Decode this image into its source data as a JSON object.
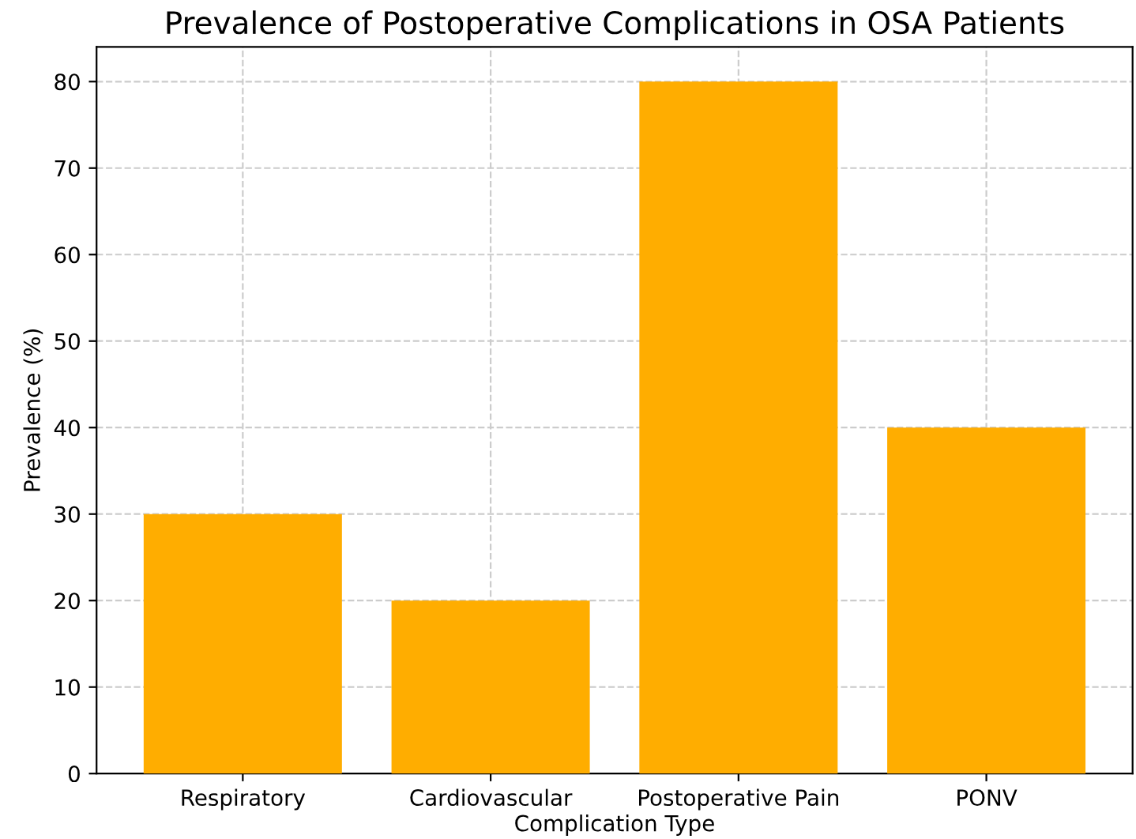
{
  "chart_data": {
    "type": "bar",
    "title": "Prevalence of Postoperative Complications in OSA Patients",
    "xlabel": "Complication Type",
    "ylabel": "Prevalence (%)",
    "categories": [
      "Respiratory",
      "Cardiovascular",
      "Postoperative Pain",
      "PONV"
    ],
    "values": [
      30,
      20,
      80,
      40
    ],
    "color": "#ffad00",
    "ylim": [
      0,
      84
    ],
    "yticks": [
      0,
      10,
      20,
      30,
      40,
      50,
      60,
      70,
      80
    ],
    "grid": true,
    "line_style": "dashed"
  }
}
